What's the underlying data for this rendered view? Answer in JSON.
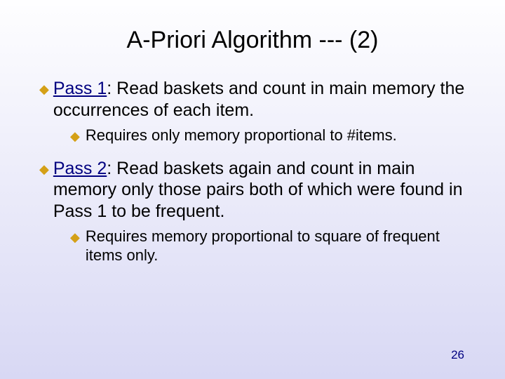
{
  "background_gradient": {
    "top": "#fefeff",
    "bottom": "#d8d8f4"
  },
  "title": "A-Priori Algorithm --- (2)",
  "colors": {
    "title": "#000000",
    "body": "#000000",
    "lead": "#000080",
    "bullet_main": "#d4a017",
    "bullet_sub": "#d4a017",
    "page_number": "#000080"
  },
  "fontsizes": {
    "title": 34,
    "main": 25,
    "sub": 22,
    "page": 17
  },
  "bullets": [
    {
      "type": "main",
      "marker": "◆",
      "lead": "Pass 1",
      "rest": ": Read baskets and count in main memory the occurrences of each item."
    },
    {
      "type": "sub",
      "marker": "◆",
      "text": "Requires only memory proportional to #items."
    },
    {
      "type": "main",
      "marker": "◆",
      "lead": "Pass 2",
      "rest": ": Read baskets again and count in main memory only those pairs both of which were found in Pass 1 to be frequent."
    },
    {
      "type": "sub",
      "marker": "◆",
      "text": "Requires memory proportional to square of frequent items only."
    }
  ],
  "page_number": "26"
}
